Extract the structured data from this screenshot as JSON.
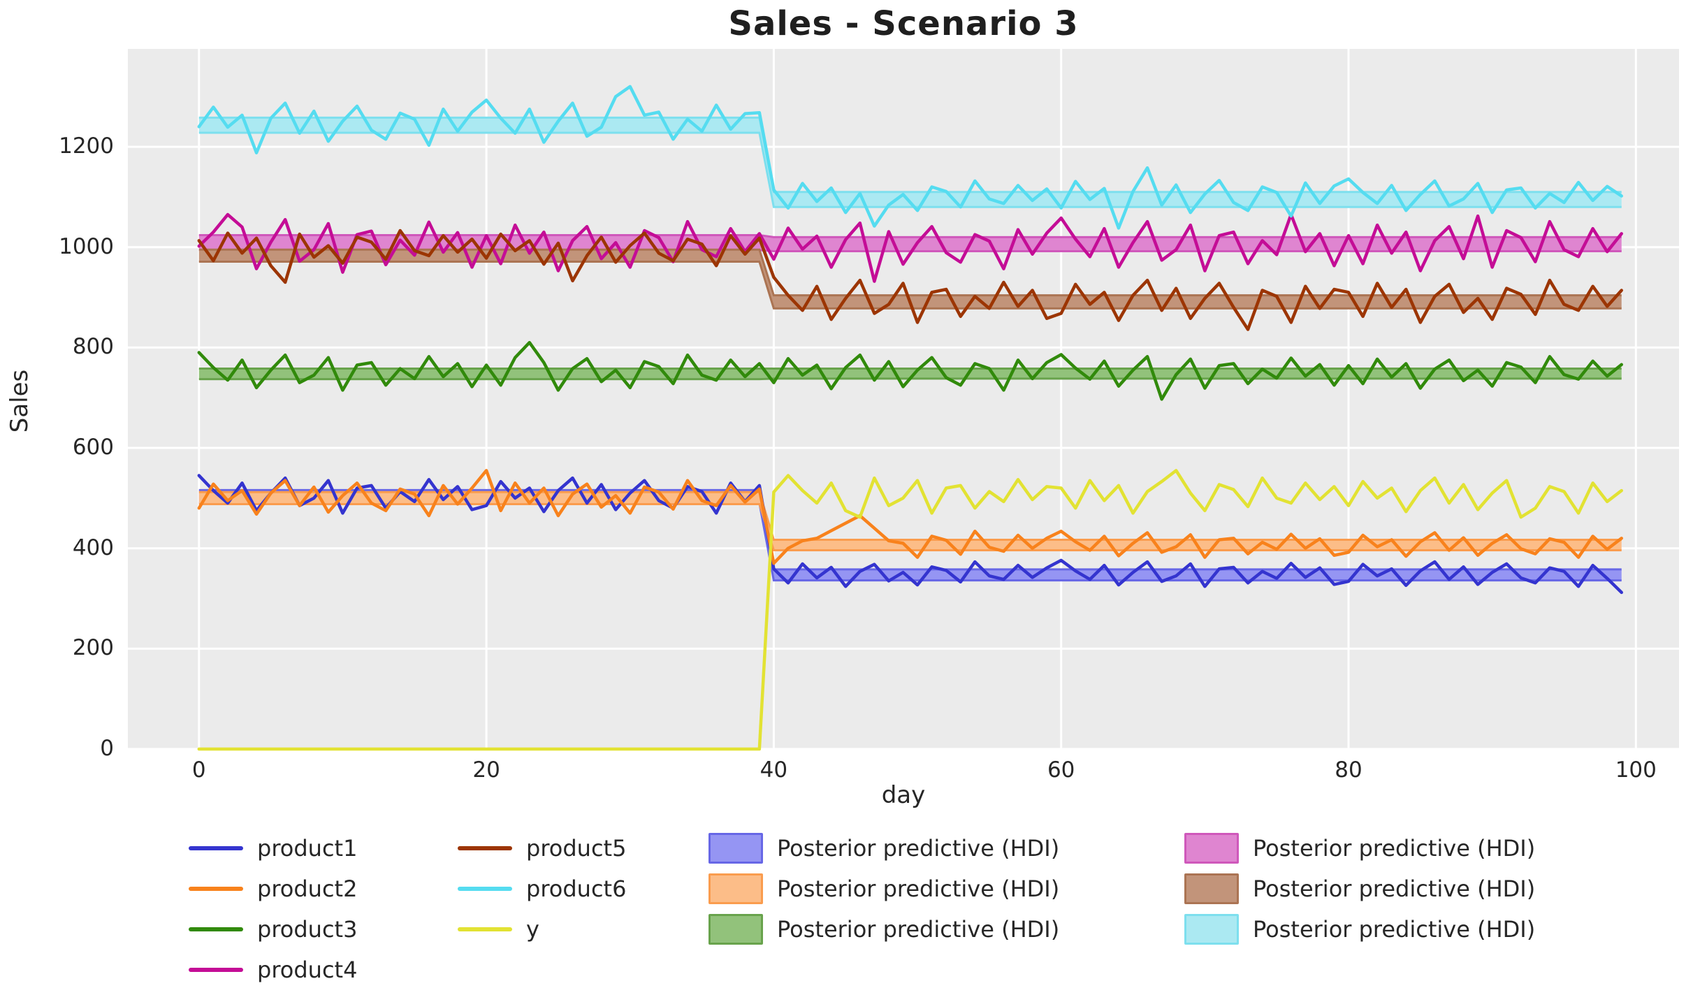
{
  "chart_data": {
    "type": "line",
    "title": "Sales - Scenario 3",
    "xlabel": "day",
    "ylabel": "Sales",
    "xlim": [
      -4.95,
      103.0
    ],
    "ylim": [
      0,
      1395
    ],
    "xticks": [
      0,
      20,
      40,
      60,
      80,
      100
    ],
    "yticks": [
      0,
      200,
      400,
      600,
      800,
      1000,
      1200
    ],
    "grid": true,
    "plot_background": "#ebebeb",
    "grid_color": "#ffffff",
    "text_color": "#262626",
    "changepoint_day": 40,
    "x_start": 0,
    "x_step": 1,
    "n_points": 100,
    "series": [
      {
        "name": "product1",
        "color": "#3434cf",
        "values": [
          545,
          515,
          490,
          530,
          475,
          510,
          540,
          485,
          500,
          535,
          470,
          520,
          525,
          480,
          513,
          493,
          537,
          497,
          523,
          477,
          485,
          533,
          500,
          520,
          473,
          515,
          540,
          490,
          527,
          477,
          510,
          535,
          495,
          480,
          523,
          513,
          470,
          530,
          493,
          525,
          359,
          331,
          369,
          341,
          362,
          324,
          354,
          368,
          335,
          352,
          327,
          363,
          356,
          333,
          373,
          345,
          338,
          366,
          342,
          361,
          376,
          355,
          338,
          366,
          327,
          352,
          373,
          334,
          345,
          369,
          324,
          359,
          362,
          331,
          354,
          340,
          370,
          342,
          361,
          328,
          334,
          368,
          345,
          359,
          326,
          355,
          373,
          338,
          363,
          328,
          352,
          369,
          341,
          331,
          361,
          354,
          324,
          366,
          340,
          312
        ]
      },
      {
        "name": "product2",
        "color": "#f8821c",
        "values": [
          480,
          528,
          495,
          515,
          468,
          510,
          535,
          485,
          522,
          472,
          505,
          530,
          490,
          475,
          518,
          508,
          465,
          525,
          488,
          520,
          555,
          475,
          530,
          490,
          520,
          465,
          508,
          528,
          482,
          505,
          470,
          522,
          512,
          478,
          535,
          495,
          485,
          525,
          492,
          518,
          370,
          400,
          415,
          420,
          435,
          450,
          465,
          440,
          415,
          410,
          382,
          424,
          416,
          388,
          434,
          402,
          394,
          426,
          400,
          420,
          434,
          413,
          396,
          424,
          385,
          410,
          431,
          392,
          403,
          427,
          382,
          417,
          420,
          389,
          412,
          398,
          428,
          400,
          419,
          386,
          392,
          426,
          403,
          417,
          384,
          413,
          431,
          396,
          421,
          386,
          410,
          427,
          399,
          389,
          419,
          412,
          382,
          424,
          398,
          420
        ]
      },
      {
        "name": "product3",
        "color": "#318a0b",
        "values": [
          790,
          760,
          735,
          775,
          720,
          755,
          785,
          730,
          745,
          780,
          715,
          765,
          770,
          725,
          758,
          738,
          782,
          742,
          768,
          722,
          765,
          725,
          780,
          810,
          770,
          715,
          758,
          778,
          732,
          755,
          720,
          772,
          762,
          728,
          785,
          745,
          735,
          775,
          742,
          768,
          730,
          778,
          745,
          765,
          718,
          760,
          785,
          735,
          772,
          722,
          755,
          780,
          740,
          725,
          768,
          758,
          715,
          775,
          738,
          770,
          786,
          759,
          737,
          773,
          723,
          755,
          782,
          697,
          746,
          777,
          719,
          764,
          768,
          728,
          757,
          739,
          779,
          743,
          766,
          725,
          764,
          728,
          777,
          741,
          768,
          719,
          757,
          775,
          734,
          755,
          723,
          770,
          761,
          730,
          782,
          746,
          737,
          773,
          743,
          766
        ]
      },
      {
        "name": "product4",
        "color": "#c40d96",
        "values": [
          1002,
          1030,
          1065,
          1040,
          957,
          1010,
          1055,
          972,
          995,
          1047,
          950,
          1025,
          1032,
          965,
          1014,
          984,
          1050,
          990,
          1029,
          960,
          1023,
          967,
          1044,
          988,
          1030,
          953,
          1013,
          1041,
          977,
          1009,
          960,
          1033,
          1019,
          971,
          1051,
          995,
          981,
          1037,
          991,
          1027,
          976,
          1038,
          996,
          1022,
          960,
          1015,
          1048,
          932,
          1031,
          966,
          1009,
          1041,
          989,
          970,
          1025,
          1012,
          957,
          1035,
          986,
          1028,
          1058,
          1016,
          981,
          1037,
          960,
          1009,
          1051,
          974,
          995,
          1044,
          953,
          1023,
          1030,
          967,
          1013,
          985,
          1065,
          991,
          1027,
          963,
          1023,
          967,
          1044,
          988,
          1030,
          953,
          1013,
          1041,
          977,
          1062,
          960,
          1033,
          1019,
          971,
          1051,
          995,
          981,
          1037,
          991,
          1027
        ]
      },
      {
        "name": "product5",
        "color": "#9c3503",
        "values": [
          1013,
          973,
          1028,
          988,
          1018,
          963,
          930,
          1026,
          980,
          1003,
          968,
          1020,
          1010,
          976,
          1033,
          993,
          983,
          1023,
          990,
          1016,
          978,
          1026,
          993,
          1013,
          966,
          1008,
          933,
          983,
          1020,
          970,
          1003,
          1028,
          988,
          973,
          1016,
          1006,
          963,
          1023,
          986,
          1018,
          940,
          904,
          874,
          922,
          856,
          898,
          934,
          868,
          886,
          928,
          850,
          910,
          916,
          862,
          902,
          878,
          930,
          882,
          914,
          858,
          868,
          926,
          886,
          910,
          854,
          904,
          934,
          874,
          918,
          858,
          898,
          928,
          880,
          836,
          914,
          902,
          850,
          922,
          878,
          916,
          910,
          862,
          928,
          880,
          916,
          850,
          902,
          926,
          870,
          898,
          856,
          918,
          906,
          866,
          934,
          886,
          874,
          922,
          882,
          914
        ]
      },
      {
        "name": "product6",
        "color": "#55dcf0",
        "values": [
          1240,
          1279,
          1239,
          1263,
          1188,
          1257,
          1287,
          1227,
          1271,
          1211,
          1251,
          1281,
          1233,
          1215,
          1267,
          1255,
          1203,
          1275,
          1231,
          1269,
          1293,
          1257,
          1227,
          1275,
          1209,
          1251,
          1287,
          1221,
          1239,
          1300,
          1320,
          1263,
          1269,
          1215,
          1255,
          1231,
          1283,
          1235,
          1266,
          1268,
          1114,
          1078,
          1127,
          1091,
          1118,
          1069,
          1107,
          1042,
          1084,
          1105,
          1073,
          1120,
          1111,
          1080,
          1132,
          1096,
          1087,
          1123,
          1093,
          1116,
          1078,
          1131,
          1095,
          1117,
          1038,
          1111,
          1158,
          1084,
          1124,
          1069,
          1106,
          1133,
          1089,
          1073,
          1120,
          1109,
          1062,
          1128,
          1087,
          1122,
          1136,
          1109,
          1087,
          1123,
          1073,
          1105,
          1132,
          1082,
          1096,
          1127,
          1069,
          1114,
          1118,
          1078,
          1107,
          1089,
          1129,
          1093,
          1121,
          1102
        ]
      },
      {
        "name": "y",
        "color": "#e2e233",
        "values": [
          0,
          0,
          0,
          0,
          0,
          0,
          0,
          0,
          0,
          0,
          0,
          0,
          0,
          0,
          0,
          0,
          0,
          0,
          0,
          0,
          0,
          0,
          0,
          0,
          0,
          0,
          0,
          0,
          0,
          0,
          0,
          0,
          0,
          0,
          0,
          0,
          0,
          0,
          0,
          0,
          512,
          545,
          515,
          490,
          530,
          475,
          462,
          540,
          485,
          500,
          535,
          470,
          520,
          525,
          480,
          513,
          493,
          537,
          497,
          523,
          520,
          480,
          535,
          495,
          525,
          470,
          513,
          533,
          555,
          510,
          475,
          527,
          517,
          483,
          540,
          500,
          490,
          530,
          497,
          523,
          485,
          533,
          500,
          520,
          473,
          515,
          540,
          490,
          527,
          477,
          510,
          535,
          462,
          480,
          523,
          513,
          470,
          530,
          493,
          515
        ]
      }
    ],
    "hdi_bands": [
      {
        "label": "Posterior predictive (HDI)",
        "product": "product1",
        "fill": "#9595f3",
        "edge": "#6767e6",
        "pre_days": [
          0,
          39
        ],
        "pre": [
          490,
          516
        ],
        "post_days": [
          40,
          99
        ],
        "post": [
          336,
          358
        ]
      },
      {
        "label": "Posterior predictive (HDI)",
        "product": "product2",
        "fill": "#fcbd88",
        "edge": "#fa9c4e",
        "pre_days": [
          0,
          39
        ],
        "pre": [
          488,
          512
        ],
        "post_days": [
          40,
          99
        ],
        "post": [
          396,
          417
        ]
      },
      {
        "label": "Posterior predictive (HDI)",
        "product": "product3",
        "fill": "#92c27b",
        "edge": "#68a34c",
        "pre_days": [
          0,
          39
        ],
        "pre": [
          737,
          758
        ],
        "post_days": [
          40,
          99
        ],
        "post": [
          738,
          758
        ]
      },
      {
        "label": "Posterior predictive (HDI)",
        "product": "product4",
        "fill": "#df85d0",
        "edge": "#cf58bb",
        "pre_days": [
          0,
          39
        ],
        "pre": [
          994,
          1024
        ],
        "post_days": [
          40,
          99
        ],
        "post": [
          992,
          1020
        ]
      },
      {
        "label": "Posterior predictive (HDI)",
        "product": "product5",
        "fill": "#c2947a",
        "edge": "#ab7453",
        "pre_days": [
          0,
          39
        ],
        "pre": [
          971,
          995
        ],
        "post_days": [
          40,
          99
        ],
        "post": [
          878,
          904
        ]
      },
      {
        "label": "Posterior predictive (HDI)",
        "product": "product6",
        "fill": "#abe9f2",
        "edge": "#7ddfee",
        "pre_days": [
          0,
          39
        ],
        "pre": [
          1228,
          1258
        ],
        "post_days": [
          40,
          99
        ],
        "post": [
          1080,
          1110
        ]
      }
    ],
    "legend": {
      "position": "below",
      "line_entries": [
        {
          "label": "product1",
          "color": "#3434cf"
        },
        {
          "label": "product2",
          "color": "#f8821c"
        },
        {
          "label": "product3",
          "color": "#318a0b"
        },
        {
          "label": "product4",
          "color": "#c40d96"
        },
        {
          "label": "product5",
          "color": "#9c3503"
        },
        {
          "label": "product6",
          "color": "#55dcf0"
        },
        {
          "label": "y",
          "color": "#e2e233"
        }
      ],
      "band_entries": [
        {
          "label": "Posterior predictive (HDI)",
          "fill": "#9595f3",
          "edge": "#6767e6"
        },
        {
          "label": "Posterior predictive (HDI)",
          "fill": "#fcbd88",
          "edge": "#fa9c4e"
        },
        {
          "label": "Posterior predictive (HDI)",
          "fill": "#92c27b",
          "edge": "#68a34c"
        },
        {
          "label": "Posterior predictive (HDI)",
          "fill": "#df85d0",
          "edge": "#cf58bb"
        },
        {
          "label": "Posterior predictive (HDI)",
          "fill": "#c2947a",
          "edge": "#ab7453"
        },
        {
          "label": "Posterior predictive (HDI)",
          "fill": "#abe9f2",
          "edge": "#7ddfee"
        }
      ]
    }
  }
}
